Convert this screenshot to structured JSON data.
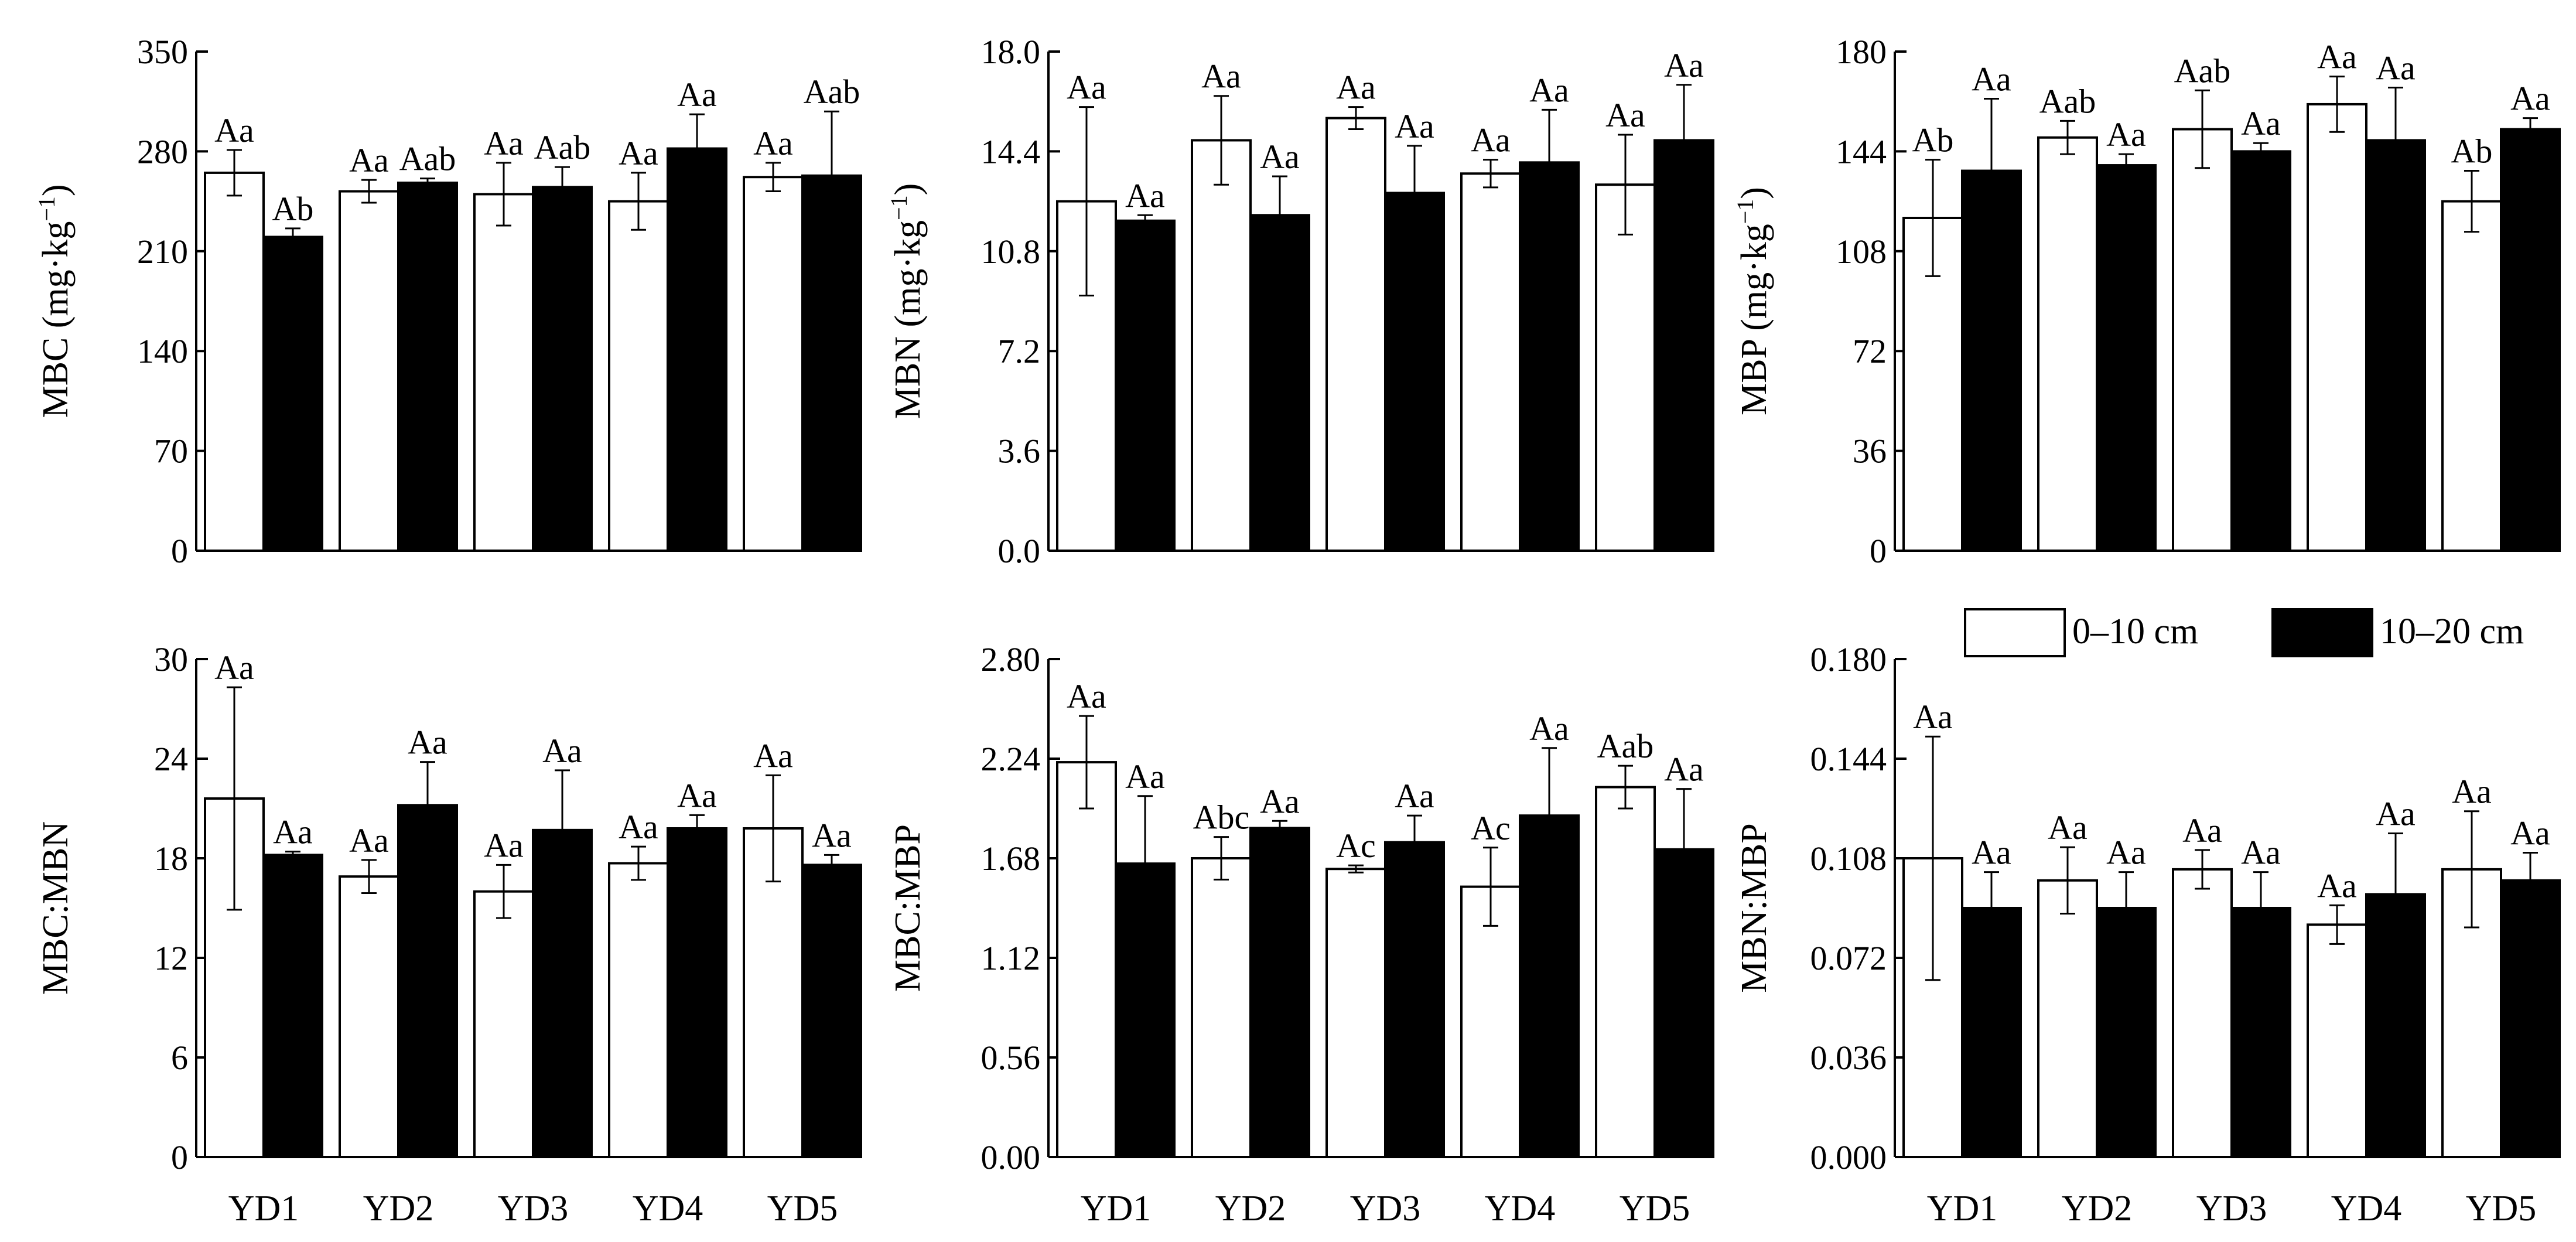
{
  "figure": {
    "legend": [
      {
        "label": "0–10 cm",
        "fill": "#ffffff"
      },
      {
        "label": "10–20 cm",
        "fill": "#000000"
      }
    ]
  },
  "colors": {
    "depth_0_10": "#ffffff",
    "depth_10_20": "#000000",
    "axis": "#000000"
  },
  "chart_data": [
    {
      "type": "bar",
      "ylabel_main": "MBC",
      "ylabel_unit": "(mg·kg",
      "ylabel_sup": "−1",
      "ylabel_close": ")",
      "categories": [
        "YD1",
        "YD2",
        "YD3",
        "YD4",
        "YD5"
      ],
      "show_xticks": false,
      "ylim": [
        0,
        350
      ],
      "yticks": [
        "0",
        "70",
        "140",
        "210",
        "280",
        "350"
      ],
      "series": [
        {
          "name": "0–10 cm",
          "values": [
            265,
            252,
            250,
            245,
            262
          ],
          "errors": [
            16,
            8,
            22,
            20,
            10
          ],
          "letters": [
            "Aa",
            "Aa",
            "Aa",
            "Aa",
            "Aa"
          ]
        },
        {
          "name": "10–20 cm",
          "values": [
            220,
            258,
            255,
            282,
            263
          ],
          "errors": [
            6,
            3,
            14,
            24,
            45
          ],
          "letters": [
            "Ab",
            "Aab",
            "Aab",
            "Aa",
            "Aab"
          ]
        }
      ]
    },
    {
      "type": "bar",
      "ylabel_main": "MBN",
      "ylabel_unit": "(mg·kg",
      "ylabel_sup": "−1",
      "ylabel_close": ")",
      "categories": [
        "YD1",
        "YD2",
        "YD3",
        "YD4",
        "YD5"
      ],
      "show_xticks": false,
      "ylim": [
        0,
        18
      ],
      "yticks": [
        "0.0",
        "3.6",
        "7.2",
        "10.8",
        "14.4",
        "18.0"
      ],
      "series": [
        {
          "name": "0–10 cm",
          "values": [
            12.6,
            14.8,
            15.6,
            13.6,
            13.2
          ],
          "errors": [
            3.4,
            1.6,
            0.4,
            0.5,
            1.8
          ],
          "letters": [
            "Aa",
            "Aa",
            "Aa",
            "Aa",
            "Aa"
          ]
        },
        {
          "name": "10–20 cm",
          "values": [
            11.9,
            12.1,
            12.9,
            14.0,
            14.8
          ],
          "errors": [
            0.2,
            1.4,
            1.7,
            1.9,
            2.0
          ],
          "letters": [
            "Aa",
            "Aa",
            "Aa",
            "Aa",
            "Aa"
          ]
        }
      ]
    },
    {
      "type": "bar",
      "ylabel_main": "MBP",
      "ylabel_unit": "(mg·kg",
      "ylabel_sup": "−1",
      "ylabel_close": ")",
      "categories": [
        "YD1",
        "YD2",
        "YD3",
        "YD4",
        "YD5"
      ],
      "show_xticks": false,
      "ylim": [
        0,
        180
      ],
      "yticks": [
        "0",
        "36",
        "72",
        "108",
        "144",
        "180"
      ],
      "series": [
        {
          "name": "0–10 cm",
          "values": [
            120,
            149,
            152,
            161,
            126
          ],
          "errors": [
            21,
            6,
            14,
            10,
            11
          ],
          "letters": [
            "Ab",
            "Aab",
            "Aab",
            "Aa",
            "Ab"
          ]
        },
        {
          "name": "10–20 cm",
          "values": [
            137,
            139,
            144,
            148,
            152
          ],
          "errors": [
            26,
            4,
            3,
            19,
            4
          ],
          "letters": [
            "Aa",
            "Aa",
            "Aa",
            "Aa",
            "Aa"
          ]
        }
      ]
    },
    {
      "type": "bar",
      "ylabel_main": "MBC:MBN",
      "ylabel_unit": "",
      "ylabel_sup": "",
      "ylabel_close": "",
      "categories": [
        "YD1",
        "YD2",
        "YD3",
        "YD4",
        "YD5"
      ],
      "show_xticks": true,
      "ylim": [
        0,
        30
      ],
      "yticks": [
        "0",
        "6",
        "12",
        "18",
        "24",
        "30"
      ],
      "series": [
        {
          "name": "0–10 cm",
          "values": [
            21.6,
            16.9,
            16.0,
            17.7,
            19.8
          ],
          "errors": [
            6.7,
            1.0,
            1.6,
            1.0,
            3.2
          ],
          "letters": [
            "Aa",
            "Aa",
            "Aa",
            "Aa",
            "Aa"
          ]
        },
        {
          "name": "10–20 cm",
          "values": [
            18.2,
            21.2,
            19.7,
            19.8,
            17.6
          ],
          "errors": [
            0.2,
            2.6,
            3.6,
            0.8,
            0.6
          ],
          "letters": [
            "Aa",
            "Aa",
            "Aa",
            "Aa",
            "Aa"
          ]
        }
      ]
    },
    {
      "type": "bar",
      "ylabel_main": "MBC:MBP",
      "ylabel_unit": "",
      "ylabel_sup": "",
      "ylabel_close": "",
      "categories": [
        "YD1",
        "YD2",
        "YD3",
        "YD4",
        "YD5"
      ],
      "show_xticks": true,
      "ylim": [
        0,
        2.8
      ],
      "yticks": [
        "0.00",
        "0.56",
        "1.12",
        "1.68",
        "2.24",
        "2.80"
      ],
      "series": [
        {
          "name": "0–10 cm",
          "values": [
            2.22,
            1.68,
            1.62,
            1.52,
            2.08
          ],
          "errors": [
            0.26,
            0.12,
            0.02,
            0.22,
            0.12
          ],
          "letters": [
            "Aa",
            "Abc",
            "Ac",
            "Ac",
            "Aab"
          ]
        },
        {
          "name": "10–20 cm",
          "values": [
            1.65,
            1.85,
            1.77,
            1.92,
            1.73
          ],
          "errors": [
            0.38,
            0.04,
            0.15,
            0.38,
            0.34
          ],
          "letters": [
            "Aa",
            "Aa",
            "Aa",
            "Aa",
            "Aa"
          ]
        }
      ]
    },
    {
      "type": "bar",
      "ylabel_main": "MBN:MBP",
      "ylabel_unit": "",
      "ylabel_sup": "",
      "ylabel_close": "",
      "categories": [
        "YD1",
        "YD2",
        "YD3",
        "YD4",
        "YD5"
      ],
      "show_xticks": true,
      "ylim": [
        0,
        0.18
      ],
      "yticks": [
        "0.000",
        "0.036",
        "0.072",
        "0.108",
        "0.144",
        "0.180"
      ],
      "series": [
        {
          "name": "0–10 cm",
          "values": [
            0.108,
            0.1,
            0.104,
            0.084,
            0.104
          ],
          "errors": [
            0.044,
            0.012,
            0.007,
            0.007,
            0.021
          ],
          "letters": [
            "Aa",
            "Aa",
            "Aa",
            "Aa",
            "Aa"
          ]
        },
        {
          "name": "10–20 cm",
          "values": [
            0.09,
            0.09,
            0.09,
            0.095,
            0.1
          ],
          "errors": [
            0.013,
            0.013,
            0.013,
            0.022,
            0.01
          ],
          "letters": [
            "Aa",
            "Aa",
            "Aa",
            "Aa",
            "Aa"
          ]
        }
      ]
    }
  ]
}
